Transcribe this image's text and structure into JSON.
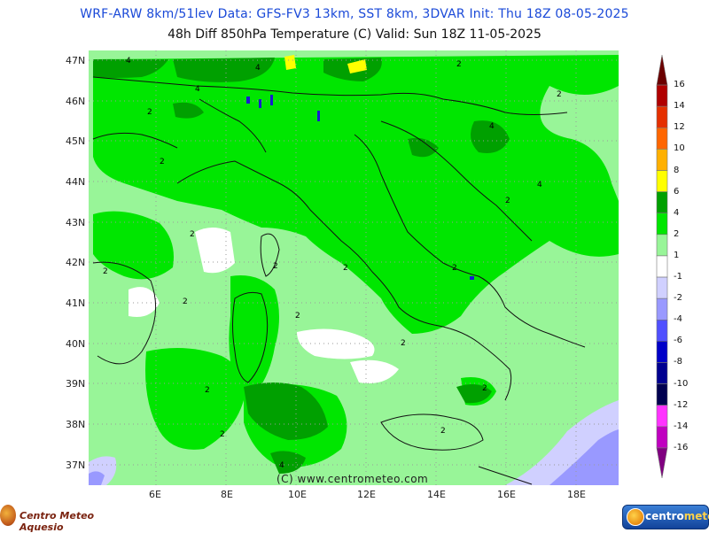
{
  "header": {
    "line1": "WRF-ARW 8km/51lev   Data: GFS-FV3 13km, SST 8km, 3DVAR   Init: Thu 18Z 08-05-2025",
    "line2": "48h Diff 850hPa Temperature (C)   Valid: Sun 18Z 11-05-2025"
  },
  "axes": {
    "lat_labels": [
      "47N",
      "46N",
      "45N",
      "44N",
      "43N",
      "42N",
      "41N",
      "40N",
      "39N",
      "38N",
      "37N"
    ],
    "lon_labels": [
      "6E",
      "8E",
      "10E",
      "12E",
      "14E",
      "16E",
      "18E"
    ]
  },
  "credit": "(C) www.centrometeo.com",
  "contour_labels": [
    "4",
    "4",
    "4",
    "2",
    "2",
    "4",
    "2",
    "2",
    "4",
    "2",
    "2",
    "2",
    "2",
    "2",
    "2",
    "2",
    "2",
    "2",
    "2",
    "2",
    "2",
    "2",
    "4"
  ],
  "legend": {
    "labels": [
      "16",
      "14",
      "12",
      "10",
      "8",
      "6",
      "4",
      "2",
      "1",
      "-1",
      "-2",
      "-4",
      "-6",
      "-8",
      "-10",
      "-12",
      "-14",
      "-16"
    ],
    "colors": [
      "#6b0000",
      "#b00000",
      "#e53000",
      "#ff6600",
      "#ffb000",
      "#ffff00",
      "#00a000",
      "#00e600",
      "#98f598",
      "#ffffff",
      "#d0d0ff",
      "#9999ff",
      "#5050ff",
      "#0000c8",
      "#000090",
      "#000050",
      "#ff33ff",
      "#c000c0",
      "#800080"
    ]
  },
  "palette": {
    "diff_1_2": "#98f598",
    "diff_2_4": "#00e600",
    "diff_4_6": "#00a000",
    "diff_6_8": "#ffff00",
    "diff_m1": "#d0d0ff",
    "diff_m2": "#9999ff",
    "diff_m4": "#5050ff"
  },
  "logos": {
    "left": "Centro Meteo Aquesio",
    "right_a": "centro",
    "right_b": "meteo"
  }
}
